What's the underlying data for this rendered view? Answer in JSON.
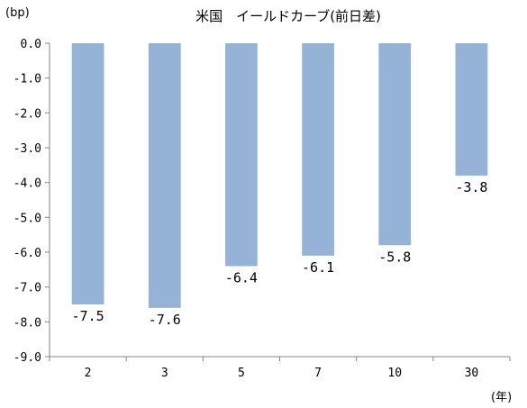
{
  "chart_data": {
    "type": "bar",
    "title": "米国　イールドカーブ(前日差)",
    "ylabel": "(bp)",
    "xlabel": "(年)",
    "categories": [
      "2",
      "3",
      "5",
      "7",
      "10",
      "30"
    ],
    "values": [
      -7.5,
      -7.6,
      -6.4,
      -6.1,
      -5.8,
      -3.8
    ],
    "data_labels": [
      "-7.5",
      "-7.6",
      "-6.4",
      "-6.1",
      "-5.8",
      "-3.8"
    ],
    "ylim": [
      -9.0,
      0.0
    ],
    "yticks": [
      0.0,
      -1.0,
      -2.0,
      -3.0,
      -4.0,
      -5.0,
      -6.0,
      -7.0,
      -8.0,
      -9.0
    ],
    "ytick_labels": [
      "0.0",
      "-1.0",
      "-2.0",
      "-3.0",
      "-4.0",
      "-5.0",
      "-6.0",
      "-7.0",
      "-8.0",
      "-9.0"
    ],
    "grid": false,
    "legend": "none",
    "bar_color": "#95b3d7",
    "axis_color": "#868686"
  }
}
